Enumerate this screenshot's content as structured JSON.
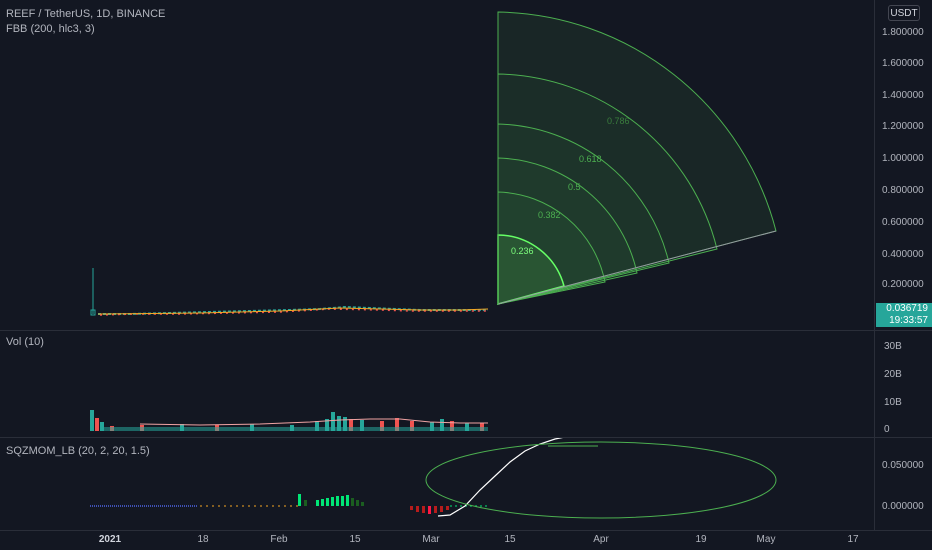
{
  "main": {
    "symbol_title": "REEF / TetherUS, 1D, BINANCE",
    "indicator_label": "FBB (200, hlc3, 3)",
    "currency": "USDT",
    "price_ticks": [
      "1.800000",
      "1.600000",
      "1.400000",
      "1.200000",
      "1.000000",
      "0.800000",
      "0.600000",
      "0.400000",
      "0.200000"
    ],
    "last_price": "0.036719",
    "countdown": "19:33:57",
    "fib_levels": [
      "0.236",
      "0.382",
      "0.5",
      "0.618",
      "0.786"
    ]
  },
  "volume": {
    "label": "Vol (10)",
    "ticks": [
      "30B",
      "20B",
      "10B",
      "0"
    ]
  },
  "momentum": {
    "label": "SQZMOM_LB (20, 2, 20, 1.5)",
    "ticks": [
      "0.050000",
      "0.000000"
    ]
  },
  "time_axis": [
    "2021",
    "18",
    "Feb",
    "15",
    "Mar",
    "15",
    "Apr",
    "19",
    "May",
    "17"
  ],
  "colors": {
    "background": "#131722",
    "up": "#26a69a",
    "down": "#ef5350",
    "fib_green": "#4caf50",
    "last_price_bg": "#26a69a"
  }
}
